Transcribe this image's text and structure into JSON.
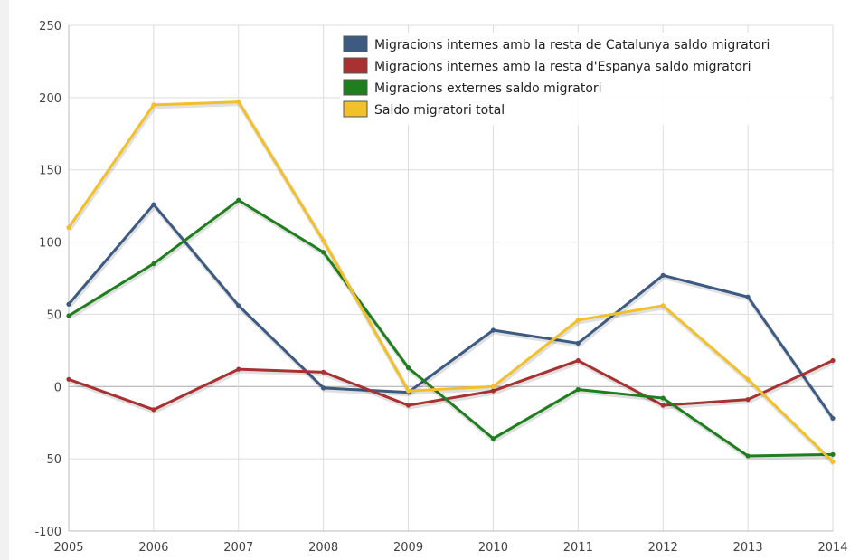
{
  "chart_data": {
    "type": "line",
    "x": [
      "2005",
      "2006",
      "2007",
      "2008",
      "2009",
      "2010",
      "2011",
      "2012",
      "2013",
      "2014"
    ],
    "ylim": [
      -100,
      250
    ],
    "y_ticks": [
      -100,
      -50,
      0,
      50,
      100,
      150,
      200,
      250
    ],
    "grid": true,
    "legend_position": "top-right",
    "series": [
      {
        "name": "Migracions internes amb la resta de Catalunya saldo migratori",
        "color": "#3d5a80",
        "values": [
          57,
          126,
          56,
          -1,
          -4,
          39,
          30,
          77,
          62,
          -22
        ]
      },
      {
        "name": "Migracions internes amb la resta d'Espanya saldo migratori",
        "color": "#a83232",
        "values": [
          5,
          -16,
          12,
          10,
          -13,
          -3,
          18,
          -13,
          -9,
          18
        ]
      },
      {
        "name": "Migracions externes saldo migratori",
        "color": "#1f7f1f",
        "values": [
          49,
          85,
          129,
          93,
          13,
          -36,
          -2,
          -8,
          -48,
          -47
        ]
      },
      {
        "name": "Saldo migratori total",
        "color": "#f2c029",
        "values": [
          110,
          195,
          197,
          101,
          -3,
          0,
          46,
          56,
          5,
          -52
        ]
      }
    ]
  }
}
